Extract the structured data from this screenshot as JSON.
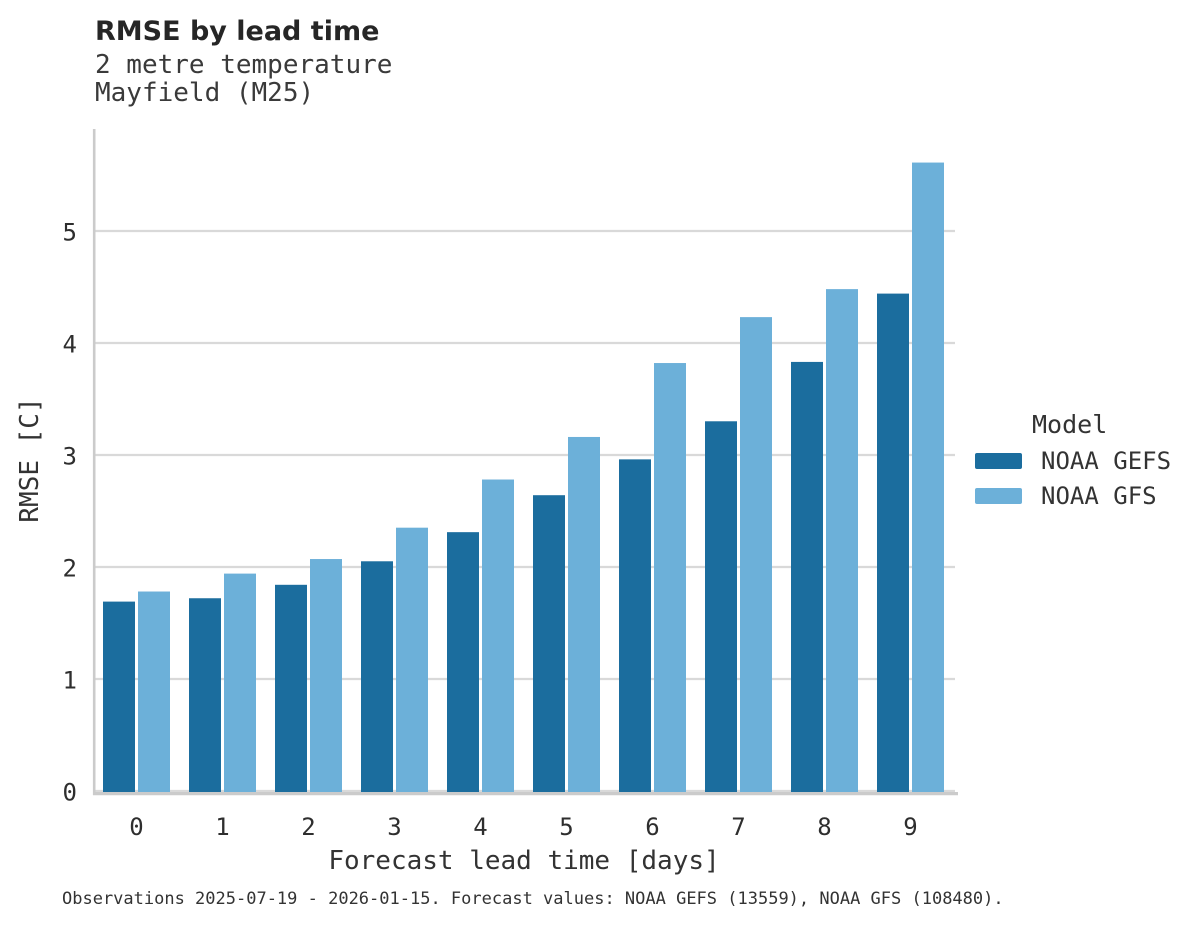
{
  "header": {
    "title": "RMSE by lead time",
    "subtitle_line1": "2 metre temperature",
    "subtitle_line2": "Mayfield (M25)"
  },
  "legend": {
    "title": "Model",
    "entries": [
      "NOAA GEFS",
      "NOAA GFS"
    ]
  },
  "footnote": "Observations 2025-07-19 - 2026-01-15. Forecast values: NOAA GEFS (13559), NOAA GFS (108480).",
  "colors": {
    "noaa_gefs": "#1b6d9e",
    "noaa_gfs": "#6cb0d9",
    "gridline": "#d9d9d9",
    "axis_spine": "#cbcbcb",
    "tick_text": "#2e2e2e"
  },
  "chart_data": {
    "type": "bar",
    "title": "RMSE by lead time",
    "subtitle": [
      "2 metre temperature",
      "Mayfield (M25)"
    ],
    "categories": [
      "0",
      "1",
      "2",
      "3",
      "4",
      "5",
      "6",
      "7",
      "8",
      "9"
    ],
    "series": [
      {
        "name": "NOAA GEFS",
        "color": "#1b6d9e",
        "values": [
          1.7,
          1.73,
          1.85,
          2.06,
          2.32,
          2.65,
          2.97,
          3.31,
          3.84,
          4.45
        ]
      },
      {
        "name": "NOAA GFS",
        "color": "#6cb0d9",
        "values": [
          1.79,
          1.95,
          2.08,
          2.36,
          2.79,
          3.17,
          3.83,
          4.24,
          4.49,
          5.62
        ]
      }
    ],
    "xlabel": "Forecast lead time [days]",
    "ylabel": "RMSE [C]",
    "ylim": [
      0,
      5.92
    ],
    "yticks": [
      0,
      1,
      2,
      3,
      4,
      5
    ],
    "grid": "horizontal",
    "legend_position": "right",
    "legend_title": "Model"
  }
}
